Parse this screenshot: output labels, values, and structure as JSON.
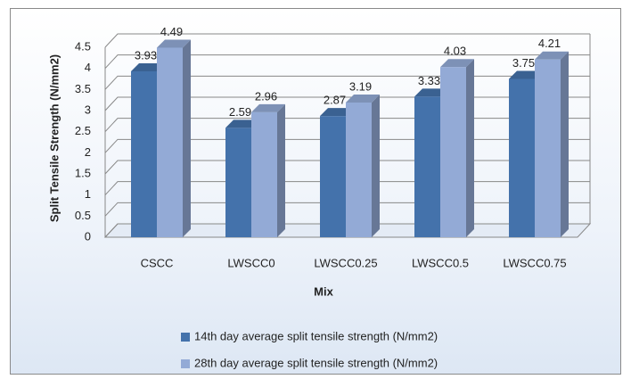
{
  "chart_data": {
    "type": "bar3d",
    "x_label": "Mix",
    "y_label": "Split Tensile Strength (N/mm2)",
    "categories": [
      "CSCC",
      "LWSCC0",
      "LWSCC0.25",
      "LWSCC0.5",
      "LWSCC0.75"
    ],
    "series": [
      {
        "name": "14th day average split tensile strength (N/mm2)",
        "color": "#4472ab",
        "values": [
          3.93,
          2.59,
          2.87,
          3.33,
          3.75
        ]
      },
      {
        "name": "28th day average split tensile strength (N/mm2)",
        "color": "#93aad6",
        "values": [
          4.49,
          2.96,
          3.19,
          4.03,
          4.21
        ]
      }
    ],
    "ylim": [
      0,
      4.5
    ],
    "yticks": [
      0,
      0.5,
      1,
      1.5,
      2,
      2.5,
      3,
      3.5,
      4,
      4.5
    ],
    "grid": true,
    "legend": "bottom"
  }
}
